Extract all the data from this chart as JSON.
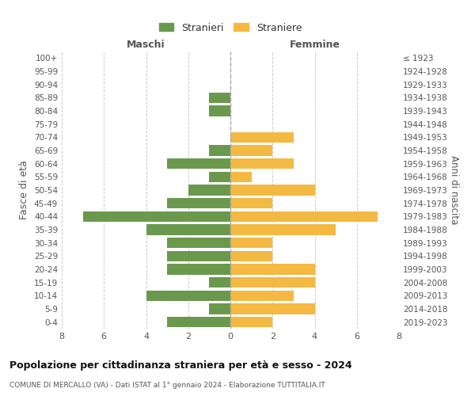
{
  "age_groups": [
    "100+",
    "95-99",
    "90-94",
    "85-89",
    "80-84",
    "75-79",
    "70-74",
    "65-69",
    "60-64",
    "55-59",
    "50-54",
    "45-49",
    "40-44",
    "35-39",
    "30-34",
    "25-29",
    "20-24",
    "15-19",
    "10-14",
    "5-9",
    "0-4"
  ],
  "birth_years": [
    "≤ 1923",
    "1924-1928",
    "1929-1933",
    "1934-1938",
    "1939-1943",
    "1944-1948",
    "1949-1953",
    "1954-1958",
    "1959-1963",
    "1964-1968",
    "1969-1973",
    "1974-1978",
    "1979-1983",
    "1984-1988",
    "1989-1993",
    "1994-1998",
    "1999-2003",
    "2004-2008",
    "2009-2013",
    "2014-2018",
    "2019-2023"
  ],
  "males": [
    0,
    0,
    0,
    1,
    1,
    0,
    0,
    1,
    3,
    1,
    2,
    3,
    7,
    4,
    3,
    3,
    3,
    1,
    4,
    1,
    3
  ],
  "females": [
    0,
    0,
    0,
    0,
    0,
    0,
    3,
    2,
    3,
    1,
    4,
    2,
    7,
    5,
    2,
    2,
    4,
    4,
    3,
    4,
    2
  ],
  "male_color": "#6a994e",
  "female_color": "#f4b942",
  "background_color": "#ffffff",
  "grid_color": "#cccccc",
  "title": "Popolazione per cittadinanza straniera per età e sesso - 2024",
  "subtitle": "COMUNE DI MERCALLO (VA) - Dati ISTAT al 1° gennaio 2024 - Elaborazione TUTTITALIA.IT",
  "xlabel_left": "Maschi",
  "xlabel_right": "Femmine",
  "ylabel_left": "Fasce di età",
  "ylabel_right": "Anni di nascita",
  "legend_male": "Stranieri",
  "legend_female": "Straniere",
  "xlim": 8,
  "bar_height": 0.8,
  "figsize": [
    6.0,
    5.0
  ],
  "dpi": 100
}
